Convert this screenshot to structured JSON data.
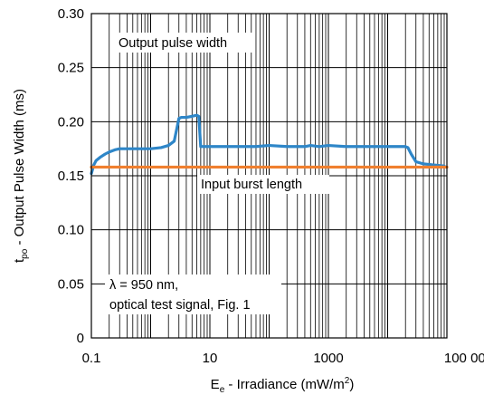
{
  "chart_data": {
    "type": "line",
    "x_scale": "log",
    "xlim": [
      0.1,
      100000
    ],
    "ylim": [
      0,
      0.3
    ],
    "x_ticks": [
      "0.1",
      "10",
      "1000",
      "100 000"
    ],
    "y_ticks": [
      "0",
      "0.05",
      "0.10",
      "0.15",
      "0.20",
      "0.25",
      "0.30"
    ],
    "x_tick_values": [
      0.1,
      10,
      1000,
      100000
    ],
    "y_tick_values": [
      0,
      0.05,
      0.1,
      0.15,
      0.2,
      0.25,
      0.3
    ],
    "grid": true,
    "xlabel": {
      "main": "E",
      "sub": "e",
      "rest": " - Irradiance (mW/m",
      "sup": "2",
      "end": ")"
    },
    "ylabel": {
      "main": "t",
      "sub": "po",
      "rest": " - Output Pulse Width (ms)"
    },
    "annotations": {
      "output": "Output pulse width",
      "input": "Input burst length",
      "cond_line1": "λ = 950 nm,",
      "cond_line2": "optical test signal, Fig. 1"
    },
    "series": [
      {
        "color": "#2E86C8",
        "x": [
          0.1,
          0.11,
          0.12,
          0.14,
          0.17,
          0.2,
          0.25,
          0.3,
          0.4,
          0.6,
          1,
          1.5,
          2,
          2.5,
          2.8,
          3.0,
          3.3,
          4,
          5,
          6,
          6.5,
          7,
          8,
          15,
          30,
          60,
          100,
          200,
          300,
          400,
          500,
          700,
          1000,
          2000,
          3000,
          5000,
          10000,
          20000,
          22000,
          25000,
          30000,
          40000,
          60000,
          90000
        ],
        "y": [
          0.152,
          0.16,
          0.164,
          0.167,
          0.17,
          0.172,
          0.174,
          0.175,
          0.175,
          0.175,
          0.175,
          0.176,
          0.178,
          0.182,
          0.195,
          0.203,
          0.204,
          0.204,
          0.205,
          0.206,
          0.205,
          0.177,
          0.177,
          0.177,
          0.177,
          0.177,
          0.178,
          0.177,
          0.177,
          0.177,
          0.178,
          0.177,
          0.178,
          0.177,
          0.177,
          0.177,
          0.177,
          0.177,
          0.176,
          0.17,
          0.163,
          0.161,
          0.16,
          0.159
        ]
      },
      {
        "color": "#F07F2E",
        "x": [
          0.1,
          100000
        ],
        "y": [
          0.158,
          0.158
        ]
      }
    ]
  }
}
